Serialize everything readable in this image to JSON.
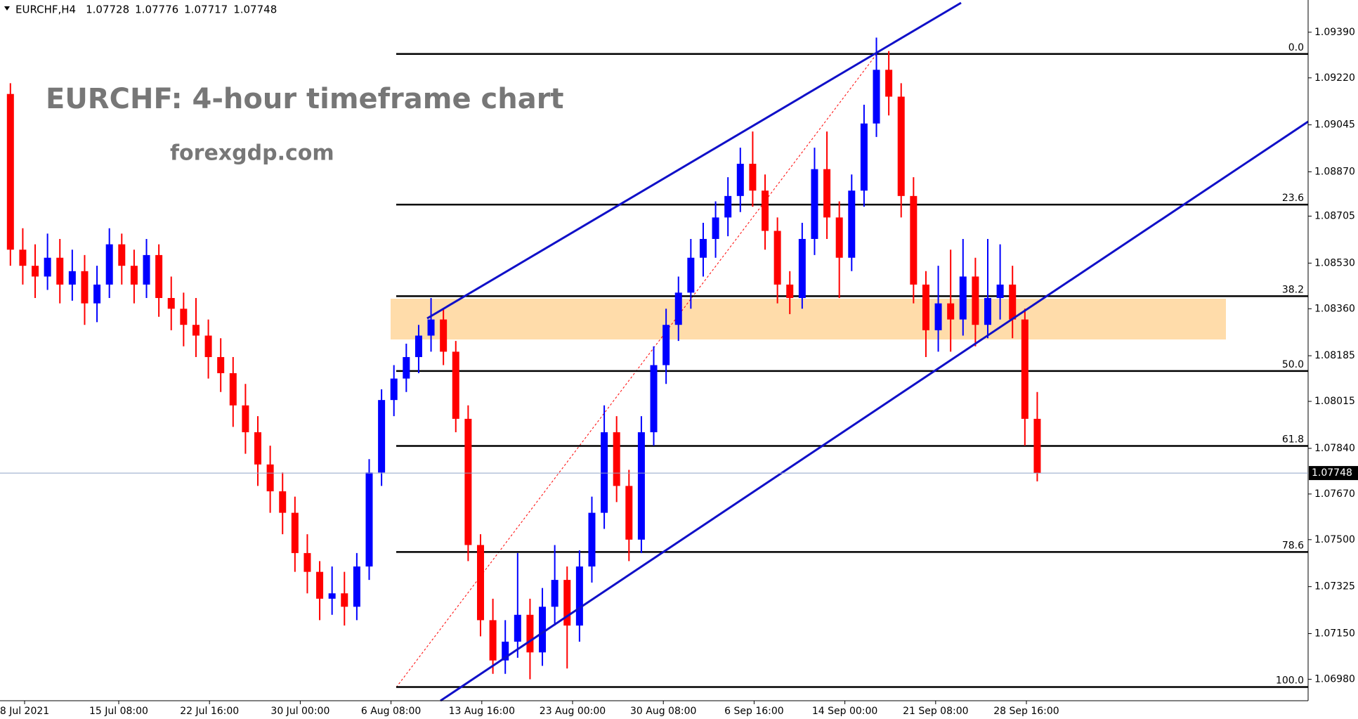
{
  "chart_data": {
    "type": "candlestick",
    "symbol": "EURCHF,H4",
    "ohlc": [
      1.07728,
      1.07776,
      1.07717,
      1.07748
    ],
    "title": "EURCHF: 4-hour timeframe chart",
    "subtitle": "forexgdp.com",
    "up_color": "#0000ff",
    "down_color": "#ff0000",
    "ylim": [
      1.069,
      1.0951
    ],
    "yticks": [
      {
        "value": 1.0939,
        "label": "1.09390"
      },
      {
        "value": 1.0922,
        "label": "1.09220"
      },
      {
        "value": 1.09045,
        "label": "1.09045"
      },
      {
        "value": 1.0887,
        "label": "1.08870"
      },
      {
        "value": 1.08705,
        "label": "1.08705"
      },
      {
        "value": 1.0853,
        "label": "1.08530"
      },
      {
        "value": 1.0836,
        "label": "1.08360"
      },
      {
        "value": 1.08185,
        "label": "1.08185"
      },
      {
        "value": 1.08015,
        "label": "1.08015"
      },
      {
        "value": 1.0784,
        "label": "1.07840"
      },
      {
        "value": 1.0767,
        "label": "1.07670"
      },
      {
        "value": 1.075,
        "label": "1.07500"
      },
      {
        "value": 1.07325,
        "label": "1.07325"
      },
      {
        "value": 1.0715,
        "label": "1.07150"
      },
      {
        "value": 1.0698,
        "label": "1.06980"
      }
    ],
    "xtick_labels": [
      "8 Jul 2021",
      "15 Jul 08:00",
      "22 Jul 16:00",
      "30 Jul 00:00",
      "6 Aug 08:00",
      "13 Aug 16:00",
      "23 Aug 00:00",
      "30 Aug 08:00",
      "6 Sep 16:00",
      "14 Sep 00:00",
      "21 Sep 08:00",
      "28 Sep 16:00"
    ],
    "last_price": 1.07748,
    "fib_levels": [
      {
        "label": "0.0",
        "value": 1.09309
      },
      {
        "label": "23.6",
        "value": 1.08748
      },
      {
        "label": "38.2",
        "value": 1.08407
      },
      {
        "label": "50.0",
        "value": 1.08128
      },
      {
        "label": "61.8",
        "value": 1.07849
      },
      {
        "label": "78.6",
        "value": 1.07454
      },
      {
        "label": "100.0",
        "value": 1.06951
      }
    ],
    "candles": [
      [
        1.0916,
        1.092,
        1.0852,
        1.0858
      ],
      [
        1.0858,
        1.0866,
        1.0845,
        1.0852
      ],
      [
        1.0852,
        1.086,
        1.084,
        1.0848
      ],
      [
        1.0848,
        1.0864,
        1.0843,
        1.0855
      ],
      [
        1.0855,
        1.0862,
        1.0838,
        1.0845
      ],
      [
        1.0845,
        1.0858,
        1.0839,
        1.085
      ],
      [
        1.085,
        1.0856,
        1.083,
        1.0838
      ],
      [
        1.0838,
        1.0852,
        1.0831,
        1.0845
      ],
      [
        1.0845,
        1.0866,
        1.084,
        1.086
      ],
      [
        1.086,
        1.0864,
        1.0845,
        1.0852
      ],
      [
        1.0852,
        1.0858,
        1.0838,
        1.0845
      ],
      [
        1.0845,
        1.0862,
        1.084,
        1.0856
      ],
      [
        1.0856,
        1.086,
        1.0833,
        1.084
      ],
      [
        1.084,
        1.0848,
        1.0828,
        1.0836
      ],
      [
        1.0836,
        1.0842,
        1.0822,
        1.083
      ],
      [
        1.083,
        1.084,
        1.0818,
        1.0826
      ],
      [
        1.0826,
        1.0832,
        1.081,
        1.0818
      ],
      [
        1.0818,
        1.0825,
        1.0805,
        1.0812
      ],
      [
        1.0812,
        1.0818,
        1.0792,
        1.08
      ],
      [
        1.08,
        1.0808,
        1.0782,
        1.079
      ],
      [
        1.079,
        1.0796,
        1.077,
        1.0778
      ],
      [
        1.0778,
        1.0785,
        1.076,
        1.0768
      ],
      [
        1.0768,
        1.0775,
        1.0752,
        1.076
      ],
      [
        1.076,
        1.0766,
        1.0738,
        1.0745
      ],
      [
        1.0745,
        1.0752,
        1.073,
        1.0738
      ],
      [
        1.0738,
        1.0742,
        1.072,
        1.0728
      ],
      [
        1.0728,
        1.074,
        1.0722,
        1.073
      ],
      [
        1.073,
        1.0738,
        1.0718,
        1.0725
      ],
      [
        1.0725,
        1.0745,
        1.072,
        1.074
      ],
      [
        1.074,
        1.078,
        1.0735,
        1.0775
      ],
      [
        1.0775,
        1.0806,
        1.077,
        1.0802
      ],
      [
        1.0802,
        1.0815,
        1.0796,
        1.081
      ],
      [
        1.081,
        1.0823,
        1.0805,
        1.0818
      ],
      [
        1.0818,
        1.083,
        1.0812,
        1.0826
      ],
      [
        1.0826,
        1.084,
        1.082,
        1.0832
      ],
      [
        1.0832,
        1.0836,
        1.0815,
        1.082
      ],
      [
        1.082,
        1.0824,
        1.079,
        1.0795
      ],
      [
        1.0795,
        1.08,
        1.0742,
        1.0748
      ],
      [
        1.0748,
        1.0752,
        1.0714,
        1.072
      ],
      [
        1.072,
        1.0728,
        1.07,
        1.0705
      ],
      [
        1.0705,
        1.072,
        1.07,
        1.0712
      ],
      [
        1.0712,
        1.0745,
        1.0706,
        1.0722
      ],
      [
        1.0722,
        1.0728,
        1.0698,
        1.0708
      ],
      [
        1.0708,
        1.0732,
        1.0703,
        1.0725
      ],
      [
        1.0725,
        1.0748,
        1.0718,
        1.0735
      ],
      [
        1.0735,
        1.074,
        1.0702,
        1.0718
      ],
      [
        1.0718,
        1.0746,
        1.0712,
        1.074
      ],
      [
        1.074,
        1.0766,
        1.0734,
        1.076
      ],
      [
        1.076,
        1.08,
        1.0754,
        1.079
      ],
      [
        1.079,
        1.0796,
        1.0764,
        1.077
      ],
      [
        1.077,
        1.0776,
        1.0742,
        1.075
      ],
      [
        1.075,
        1.0796,
        1.0745,
        1.079
      ],
      [
        1.079,
        1.0822,
        1.0785,
        1.0815
      ],
      [
        1.0815,
        1.0836,
        1.0808,
        1.083
      ],
      [
        1.083,
        1.0848,
        1.0824,
        1.0842
      ],
      [
        1.0842,
        1.0862,
        1.0836,
        1.0855
      ],
      [
        1.0855,
        1.0868,
        1.0848,
        1.0862
      ],
      [
        1.0862,
        1.0876,
        1.0855,
        1.087
      ],
      [
        1.087,
        1.0885,
        1.0863,
        1.0878
      ],
      [
        1.0878,
        1.0896,
        1.0872,
        1.089
      ],
      [
        1.089,
        1.0902,
        1.0874,
        1.088
      ],
      [
        1.088,
        1.0886,
        1.0858,
        1.0865
      ],
      [
        1.0865,
        1.087,
        1.0838,
        1.0845
      ],
      [
        1.0845,
        1.085,
        1.0834,
        1.084
      ],
      [
        1.084,
        1.0868,
        1.0836,
        1.0862
      ],
      [
        1.0862,
        1.0896,
        1.0856,
        1.0888
      ],
      [
        1.0888,
        1.0902,
        1.0862,
        1.087
      ],
      [
        1.087,
        1.0876,
        1.084,
        1.0855
      ],
      [
        1.0855,
        1.0886,
        1.085,
        1.088
      ],
      [
        1.088,
        1.0912,
        1.0874,
        1.0905
      ],
      [
        1.0905,
        1.0937,
        1.09,
        1.0925
      ],
      [
        1.0925,
        1.0932,
        1.0908,
        1.0915
      ],
      [
        1.0915,
        1.092,
        1.087,
        1.0878
      ],
      [
        1.0878,
        1.0885,
        1.0838,
        1.0845
      ],
      [
        1.0845,
        1.085,
        1.0818,
        1.0828
      ],
      [
        1.0828,
        1.0852,
        1.082,
        1.0838
      ],
      [
        1.0838,
        1.0858,
        1.082,
        1.0832
      ],
      [
        1.0832,
        1.0862,
        1.0826,
        1.0848
      ],
      [
        1.0848,
        1.0855,
        1.0822,
        1.083
      ],
      [
        1.083,
        1.0862,
        1.0825,
        1.084
      ],
      [
        1.084,
        1.086,
        1.0832,
        1.0845
      ],
      [
        1.0845,
        1.0852,
        1.0825,
        1.0832
      ],
      [
        1.0832,
        1.0836,
        1.0785,
        1.0795
      ],
      [
        1.0795,
        1.0805,
        1.07717,
        1.07748
      ]
    ]
  }
}
